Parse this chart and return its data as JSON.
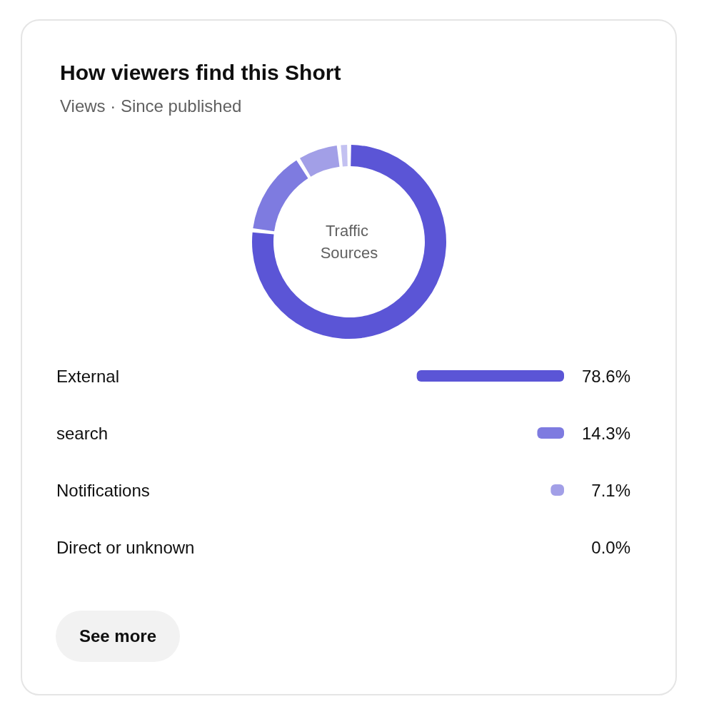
{
  "chart_data": [
    {
      "type": "donut",
      "title": "How viewers find this Short",
      "subtitle": "Views · Since published",
      "categories": [
        null,
        null,
        null,
        null
      ],
      "values": [
        76.9,
        14.3,
        7.1,
        1.7
      ],
      "colors": [
        "#5b55d6",
        "#7e7be0",
        "#a29fe7",
        "#c3c1f1"
      ],
      "annotations": [
        "Traffic Sources"
      ]
    },
    {
      "type": "bar",
      "orientation": "horizontal",
      "categories": [
        "External",
        "search",
        "Notifications",
        "Direct or unknown"
      ],
      "values": [
        78.6,
        14.3,
        7.1,
        0.0
      ],
      "colors": [
        "#5b55d6",
        "#7e7be0",
        "#a29fe7",
        "#c3c1f1"
      ],
      "value_labels": [
        "78.6%",
        "14.3%",
        "7.1%",
        "0.0%"
      ],
      "tick_labels": "y",
      "annotations": [
        "See more"
      ]
    }
  ]
}
